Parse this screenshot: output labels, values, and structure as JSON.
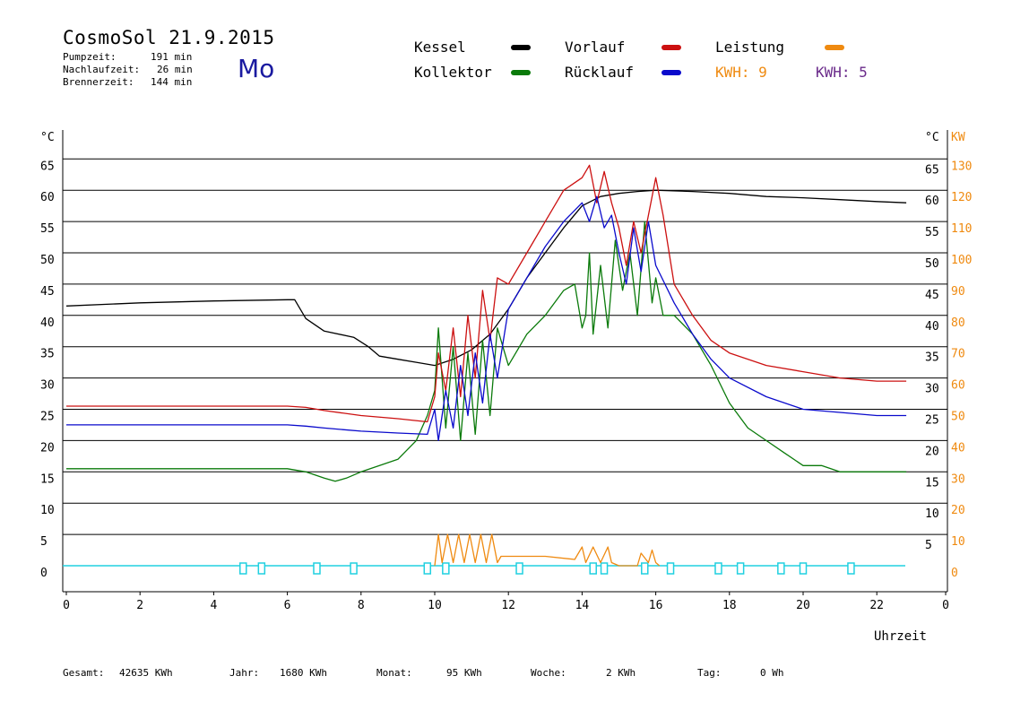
{
  "header": {
    "title": "CosmoSol 21.9.2015",
    "pumpzeit_label": "Pumpzeit:",
    "pumpzeit_value": "191 min",
    "nachlaufzeit_label": "Nachlaufzeit:",
    "nachlaufzeit_value": "26 min",
    "brennerzeit_label": "Brennerzeit:",
    "brennerzeit_value": "144 min",
    "weekday": "Mo"
  },
  "legend": {
    "kessel": "Kessel",
    "kollektor": "Kollektor",
    "vorlauf": "Vorlauf",
    "ruecklauf": "Rücklauf",
    "leistung": "Leistung",
    "kwh1": "KWH: 9",
    "kwh2": "KWH: 5"
  },
  "colors": {
    "kessel": "#000000",
    "kollektor": "#0a7a0a",
    "vorlauf": "#cc1010",
    "ruecklauf": "#0a0acc",
    "leistung": "#ef8a10",
    "kwh2": "#6a2a8a",
    "pump": "#20d0e0"
  },
  "footer": {
    "gesamt_label": "Gesamt:",
    "gesamt_value": "42635 KWh",
    "jahr_label": "Jahr:",
    "jahr_value": "1680 KWh",
    "monat_label": "Monat:",
    "monat_value": "95 KWh",
    "woche_label": "Woche:",
    "woche_value": "2 KWh",
    "tag_label": "Tag:",
    "tag_value": "0 Wh"
  },
  "chart_data": {
    "type": "line",
    "xlabel": "Uhrzeit",
    "ylabel_left": "°C",
    "ylabel_right_temp": "°C",
    "ylabel_right_power": "KW",
    "xlim": [
      0,
      24
    ],
    "ylim": [
      -4,
      69
    ],
    "x_ticks": [
      "0",
      "2",
      "4",
      "6",
      "8",
      "10",
      "12",
      "14",
      "16",
      "18",
      "20",
      "22",
      "0"
    ],
    "y_ticks_left": [
      "65",
      "60",
      "55",
      "50",
      "45",
      "40",
      "35",
      "30",
      "25",
      "20",
      "15",
      "10",
      "5",
      "0"
    ],
    "y_ticks_right_temp": [
      "65",
      "60",
      "55",
      "50",
      "45",
      "40",
      "35",
      "30",
      "25",
      "20",
      "15",
      "10",
      "5"
    ],
    "y_ticks_right_power": [
      "130",
      "120",
      "110",
      "100",
      "90",
      "80",
      "70",
      "60",
      "50",
      "40",
      "30",
      "20",
      "10",
      "0"
    ],
    "grid": "horizontal",
    "series": [
      {
        "name": "Kessel",
        "color": "#000000",
        "x": [
          0,
          2,
          4,
          6,
          6.2,
          6.5,
          7,
          7.8,
          8.2,
          8.5,
          9,
          9.5,
          10,
          10.5,
          11,
          11.5,
          12,
          12.5,
          13,
          13.5,
          14,
          14.5,
          15,
          15.5,
          16,
          17,
          18,
          19,
          20,
          21,
          22,
          22.8
        ],
        "y": [
          41.5,
          42,
          42.3,
          42.5,
          42.5,
          39.5,
          37.5,
          36.5,
          35,
          33.5,
          33,
          32.5,
          32,
          33,
          34.5,
          37,
          41,
          46,
          50,
          54,
          57.5,
          59,
          59.5,
          59.8,
          60,
          59.8,
          59.5,
          59,
          58.8,
          58.5,
          58.2,
          58
        ]
      },
      {
        "name": "Kollektor",
        "color": "#0a7a0a",
        "x": [
          0,
          2,
          4,
          6,
          6.5,
          7,
          7.3,
          7.6,
          8,
          8.5,
          9,
          9.5,
          9.8,
          10,
          10.1,
          10.3,
          10.5,
          10.7,
          10.9,
          11.1,
          11.3,
          11.5,
          11.7,
          12,
          12.5,
          13,
          13.5,
          13.8,
          14,
          14.1,
          14.2,
          14.3,
          14.5,
          14.7,
          14.9,
          15.1,
          15.3,
          15.5,
          15.7,
          15.9,
          16,
          16.2,
          16.5,
          17,
          17.5,
          18,
          18.5,
          19,
          19.5,
          20,
          20.5,
          21,
          21.5,
          22,
          22.8
        ],
        "y": [
          15.5,
          15.5,
          15.5,
          15.5,
          15,
          14,
          13.5,
          14,
          15,
          16,
          17,
          20,
          24,
          28,
          38,
          22,
          35,
          20,
          34,
          21,
          36,
          24,
          38,
          32,
          37,
          40,
          44,
          45,
          38,
          40,
          50,
          37,
          48,
          38,
          52,
          44,
          50,
          40,
          55,
          42,
          46,
          40,
          40,
          37,
          32,
          26,
          22,
          20,
          18,
          16,
          16,
          15,
          15,
          15,
          15
        ]
      },
      {
        "name": "Vorlauf",
        "color": "#cc1010",
        "x": [
          0,
          2,
          4,
          6,
          6.5,
          7,
          8,
          9,
          9.8,
          10,
          10.1,
          10.3,
          10.5,
          10.7,
          10.9,
          11.1,
          11.3,
          11.5,
          11.7,
          12,
          12.5,
          13,
          13.5,
          14,
          14.2,
          14.4,
          14.6,
          14.8,
          15,
          15.2,
          15.4,
          15.6,
          15.8,
          16,
          16.2,
          16.5,
          17,
          17.5,
          18,
          19,
          20,
          21,
          22,
          22.8
        ],
        "y": [
          25.5,
          25.5,
          25.5,
          25.5,
          25.3,
          24.8,
          24,
          23.5,
          23,
          27,
          34,
          28,
          38,
          27,
          40,
          30,
          44,
          36,
          46,
          45,
          50,
          55,
          60,
          62,
          64,
          58,
          63,
          58,
          54,
          48,
          55,
          50,
          56,
          62,
          56,
          45,
          40,
          36,
          34,
          32,
          31,
          30,
          29.5,
          29.5
        ]
      },
      {
        "name": "Rücklauf",
        "color": "#0a0acc",
        "x": [
          0,
          2,
          4,
          6,
          6.5,
          7,
          8,
          9,
          9.8,
          10,
          10.1,
          10.3,
          10.5,
          10.7,
          10.9,
          11.1,
          11.3,
          11.5,
          11.7,
          12,
          12.5,
          13,
          13.5,
          14,
          14.2,
          14.4,
          14.6,
          14.8,
          15,
          15.2,
          15.4,
          15.6,
          15.8,
          16,
          16.5,
          17,
          17.5,
          18,
          19,
          20,
          21,
          22,
          22.8
        ],
        "y": [
          22.5,
          22.5,
          22.5,
          22.5,
          22.3,
          22,
          21.5,
          21.2,
          21,
          25,
          20,
          28,
          22,
          32,
          24,
          34,
          26,
          37,
          30,
          41,
          46,
          51,
          55,
          58,
          55,
          59,
          54,
          56,
          50,
          45,
          54,
          47,
          55,
          48,
          42,
          37,
          33,
          30,
          27,
          25,
          24.5,
          24,
          24
        ]
      },
      {
        "name": "Leistung",
        "color": "#ef8a10",
        "x": [
          10,
          10.1,
          10.2,
          10.35,
          10.5,
          10.65,
          10.8,
          10.95,
          11.1,
          11.25,
          11.4,
          11.55,
          11.7,
          11.8,
          12,
          13,
          13.8,
          14,
          14.1,
          14.3,
          14.5,
          14.7,
          14.8,
          15,
          15.5,
          15.6,
          15.8,
          15.9,
          16,
          16.1
        ],
        "y": [
          0,
          5,
          0.5,
          5,
          0.5,
          5,
          0.5,
          5,
          0.5,
          5,
          0.5,
          5,
          0.5,
          1.5,
          1.5,
          1.5,
          1,
          3,
          0.5,
          3,
          0.5,
          3,
          0.5,
          0,
          0,
          2,
          0.5,
          2.5,
          0.5,
          0
        ]
      }
    ],
    "pump_markers_x": [
      4.8,
      5.3,
      6.8,
      7.8,
      9.8,
      10.3,
      12.3,
      14.3,
      14.6,
      15.7,
      16.4,
      17.7,
      18.3,
      19.4,
      20,
      21.3
    ]
  }
}
